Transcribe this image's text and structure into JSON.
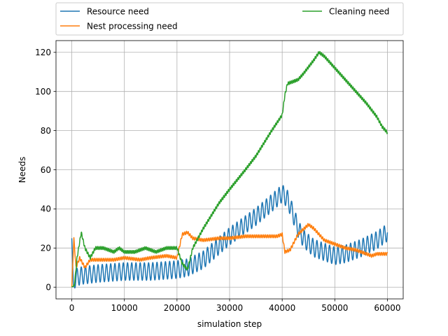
{
  "chart_data": {
    "type": "line",
    "xlabel": "simulation step",
    "ylabel": "Needs",
    "xlim": [
      -3000,
      63000
    ],
    "ylim": [
      -6,
      126
    ],
    "x_ticks": [
      0,
      10000,
      20000,
      30000,
      40000,
      50000,
      60000
    ],
    "x_tick_labels": [
      "0",
      "10000",
      "20000",
      "30000",
      "40000",
      "50000",
      "60000"
    ],
    "y_ticks": [
      0,
      20,
      40,
      60,
      80,
      100,
      120
    ],
    "y_tick_labels": [
      "0",
      "20",
      "40",
      "60",
      "80",
      "100",
      "120"
    ],
    "grid": true,
    "legend_position": "above plot, two columns",
    "series": [
      {
        "name": "Resource need",
        "color": "#1f77b4",
        "oscillation_amplitude": 4.5,
        "oscillation_period": 800,
        "points": [
          [
            0,
            25
          ],
          [
            300,
            0
          ],
          [
            800,
            5
          ],
          [
            2000,
            6
          ],
          [
            5000,
            7
          ],
          [
            10000,
            8
          ],
          [
            15000,
            8
          ],
          [
            20000,
            9
          ],
          [
            22000,
            10
          ],
          [
            25000,
            14
          ],
          [
            30000,
            26
          ],
          [
            35000,
            36
          ],
          [
            38000,
            43
          ],
          [
            40000,
            48
          ],
          [
            41000,
            45
          ],
          [
            42000,
            38
          ],
          [
            43000,
            30
          ],
          [
            44000,
            25
          ],
          [
            46000,
            20
          ],
          [
            48000,
            18
          ],
          [
            50000,
            16
          ],
          [
            52000,
            17
          ],
          [
            55000,
            20
          ],
          [
            58000,
            24
          ],
          [
            60000,
            28
          ]
        ]
      },
      {
        "name": "Nest processing need",
        "color": "#ff7f0e",
        "oscillation_amplitude": 0.8,
        "oscillation_period": 350,
        "points": [
          [
            0,
            0
          ],
          [
            400,
            25
          ],
          [
            800,
            10
          ],
          [
            1500,
            15
          ],
          [
            2500,
            10
          ],
          [
            3500,
            14
          ],
          [
            5000,
            14
          ],
          [
            8000,
            14
          ],
          [
            10000,
            15
          ],
          [
            13000,
            14
          ],
          [
            15000,
            15
          ],
          [
            18000,
            16
          ],
          [
            20000,
            15
          ],
          [
            21000,
            27
          ],
          [
            22000,
            28
          ],
          [
            23000,
            25
          ],
          [
            25000,
            24
          ],
          [
            28000,
            25
          ],
          [
            30000,
            25
          ],
          [
            33000,
            26
          ],
          [
            36000,
            26
          ],
          [
            39000,
            26
          ],
          [
            40000,
            27
          ],
          [
            40500,
            18
          ],
          [
            41500,
            19
          ],
          [
            43000,
            27
          ],
          [
            45000,
            32
          ],
          [
            46000,
            30
          ],
          [
            47000,
            27
          ],
          [
            48000,
            24
          ],
          [
            50000,
            22
          ],
          [
            52000,
            20
          ],
          [
            54000,
            19
          ],
          [
            56000,
            17
          ],
          [
            57000,
            16
          ],
          [
            58000,
            17
          ],
          [
            60000,
            17
          ]
        ]
      },
      {
        "name": "Cleaning need",
        "color": "#2ca02c",
        "oscillation_amplitude": 0.8,
        "oscillation_period": 300,
        "points": [
          [
            0,
            0
          ],
          [
            500,
            1
          ],
          [
            1000,
            15
          ],
          [
            1800,
            28
          ],
          [
            2500,
            20
          ],
          [
            3500,
            15
          ],
          [
            4500,
            20
          ],
          [
            6000,
            20
          ],
          [
            8000,
            18
          ],
          [
            9000,
            20
          ],
          [
            10000,
            18
          ],
          [
            12000,
            18
          ],
          [
            14000,
            20
          ],
          [
            16000,
            18
          ],
          [
            18000,
            20
          ],
          [
            20000,
            20
          ],
          [
            21000,
            12
          ],
          [
            22000,
            9
          ],
          [
            23000,
            20
          ],
          [
            25000,
            30
          ],
          [
            28000,
            43
          ],
          [
            30000,
            50
          ],
          [
            33000,
            60
          ],
          [
            35000,
            67
          ],
          [
            38000,
            80
          ],
          [
            40000,
            88
          ],
          [
            40500,
            98
          ],
          [
            41000,
            104
          ],
          [
            43000,
            106
          ],
          [
            44000,
            109
          ],
          [
            46000,
            116
          ],
          [
            47000,
            120
          ],
          [
            48000,
            118
          ],
          [
            49000,
            115
          ],
          [
            50000,
            112
          ],
          [
            52000,
            106
          ],
          [
            54000,
            100
          ],
          [
            56000,
            94
          ],
          [
            58000,
            87
          ],
          [
            59000,
            82
          ],
          [
            60000,
            79
          ]
        ]
      }
    ]
  }
}
